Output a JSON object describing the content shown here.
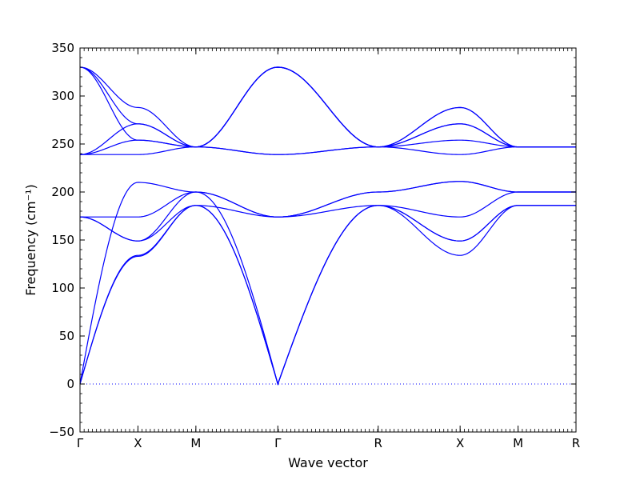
{
  "chart_data": {
    "type": "line",
    "title": "",
    "xlabel": "Wave vector",
    "ylabel": "Frequency (cm⁻¹)",
    "ylim": [
      -50,
      350
    ],
    "yticks": [
      -50,
      0,
      50,
      100,
      150,
      200,
      250,
      300,
      350
    ],
    "grid": false,
    "legend": "none",
    "line_color": "#0000ff",
    "zero_line": {
      "value": 0,
      "style": "dotted",
      "color": "#0000ff"
    },
    "kpath": [
      {
        "label": "Γ",
        "x": 0
      },
      {
        "label": "X",
        "x": 0.5
      },
      {
        "label": "M",
        "x": 1.0
      },
      {
        "label": "Γ",
        "x": 1.707
      },
      {
        "label": "R",
        "x": 2.573
      },
      {
        "label": "X",
        "x": 3.28
      },
      {
        "label": "M",
        "x": 3.78
      },
      {
        "label": "R",
        "x": 4.28
      }
    ],
    "x": [
      0,
      0.5,
      1.0,
      1.707,
      2.573,
      3.28,
      3.78,
      4.28
    ],
    "series": [
      {
        "values": [
          0,
          133,
          186,
          0,
          186,
          134,
          186,
          186
        ]
      },
      {
        "values": [
          0,
          134,
          186,
          0,
          186,
          149,
          186,
          186
        ]
      },
      {
        "values": [
          0,
          210,
          200,
          0,
          186,
          149,
          186,
          186
        ]
      },
      {
        "values": [
          174,
          149,
          186,
          174,
          186,
          174,
          200,
          200
        ]
      },
      {
        "values": [
          174,
          149,
          200,
          174,
          200,
          211,
          200,
          200
        ]
      },
      {
        "values": [
          174,
          174,
          200,
          174,
          200,
          211,
          200,
          200
        ]
      },
      {
        "values": [
          239,
          239,
          247,
          239,
          247,
          239,
          247,
          247
        ]
      },
      {
        "values": [
          239,
          254,
          247,
          330,
          247,
          254,
          247,
          247
        ]
      },
      {
        "values": [
          239,
          271,
          247,
          330,
          247,
          271,
          247,
          247
        ]
      },
      {
        "values": [
          330,
          271,
          247,
          330,
          247,
          288,
          247,
          247
        ]
      },
      {
        "values": [
          330,
          288,
          247,
          330,
          247,
          288,
          247,
          247
        ]
      },
      {
        "values": [
          330,
          254,
          247,
          239,
          247,
          271,
          247,
          247
        ]
      }
    ]
  }
}
